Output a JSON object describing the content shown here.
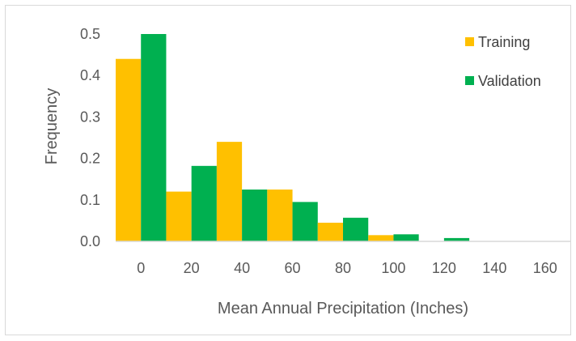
{
  "chart_data": {
    "type": "bar",
    "categories": [
      "0",
      "20",
      "40",
      "60",
      "80",
      "100",
      "120",
      "140",
      "160"
    ],
    "series": [
      {
        "name": "Training",
        "color": "#FFC000",
        "values": [
          0.44,
          0.12,
          0.24,
          0.125,
          0.045,
          0.015,
          0.0,
          0.0,
          0.0
        ]
      },
      {
        "name": "Validation",
        "color": "#00B050",
        "values": [
          0.5,
          0.182,
          0.125,
          0.095,
          0.057,
          0.017,
          0.008,
          0.0,
          0.0
        ]
      }
    ],
    "y_ticks": [
      "0.0",
      "0.1",
      "0.2",
      "0.3",
      "0.4",
      "0.5"
    ],
    "ylim": [
      0,
      0.5
    ],
    "xlabel": "Mean Annual Precipitation (Inches)",
    "ylabel": "Frequency",
    "grid": false,
    "legend": "top-right"
  }
}
